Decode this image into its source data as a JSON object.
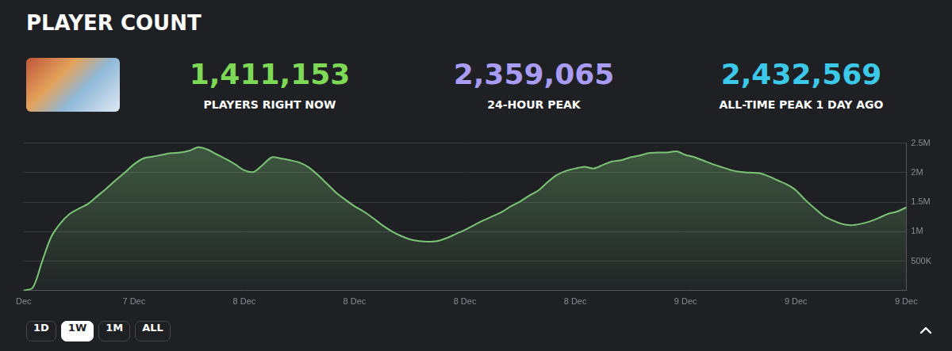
{
  "header": {
    "title": "PLAYER COUNT"
  },
  "stats": [
    {
      "value": "1,411,153",
      "label": "PLAYERS RIGHT NOW"
    },
    {
      "value": "2,359,065",
      "label": "24-HOUR PEAK"
    },
    {
      "value": "2,432,569",
      "label": "ALL-TIME PEAK 1 DAY AGO"
    }
  ],
  "range_buttons": {
    "options": [
      "1D",
      "1W",
      "1M",
      "ALL"
    ],
    "selected": "1W"
  },
  "chart_data": {
    "type": "area",
    "categories": [
      "Dec",
      null,
      null,
      null,
      null,
      null,
      null,
      null,
      null,
      null,
      null,
      null,
      "7 Dec",
      null,
      null,
      null,
      null,
      null,
      null,
      null,
      null,
      null,
      null,
      null,
      "8 Dec",
      null,
      null,
      null,
      null,
      null,
      null,
      null,
      null,
      null,
      null,
      null,
      "8 Dec",
      null,
      null,
      null,
      null,
      null,
      null,
      null,
      null,
      null,
      null,
      null,
      "8 Dec",
      null,
      null,
      null,
      null,
      null,
      null,
      null,
      null,
      null,
      null,
      null,
      "8 Dec",
      null,
      null,
      null,
      null,
      null,
      null,
      null,
      null,
      null,
      null,
      null,
      "9 Dec",
      null,
      null,
      null,
      null,
      null,
      null,
      null,
      null,
      null,
      null,
      null,
      "9 Dec",
      null,
      null,
      null,
      null,
      null,
      null,
      null,
      null,
      null,
      null,
      null,
      "9 Dec"
    ],
    "series": [
      {
        "color": "#7cc576",
        "values": [
          0,
          50000,
          490000,
          910000,
          1140000,
          1300000,
          1390000,
          1470000,
          1600000,
          1730000,
          1870000,
          2000000,
          2140000,
          2240000,
          2270000,
          2300000,
          2330000,
          2340000,
          2370000,
          2430000,
          2390000,
          2310000,
          2230000,
          2140000,
          2040000,
          2010000,
          2130000,
          2260000,
          2240000,
          2210000,
          2170000,
          2090000,
          1960000,
          1810000,
          1660000,
          1540000,
          1430000,
          1340000,
          1230000,
          1110000,
          1010000,
          930000,
          870000,
          840000,
          830000,
          840000,
          890000,
          960000,
          1030000,
          1110000,
          1190000,
          1260000,
          1330000,
          1430000,
          1510000,
          1610000,
          1700000,
          1840000,
          1960000,
          2030000,
          2070000,
          2100000,
          2070000,
          2130000,
          2190000,
          2210000,
          2260000,
          2290000,
          2330000,
          2340000,
          2340000,
          2360000,
          2300000,
          2260000,
          2200000,
          2140000,
          2090000,
          2040000,
          2010000,
          2000000,
          1990000,
          1940000,
          1870000,
          1800000,
          1700000,
          1540000,
          1400000,
          1270000,
          1190000,
          1130000,
          1110000,
          1130000,
          1170000,
          1230000,
          1300000,
          1340000,
          1410000
        ]
      }
    ],
    "ylim": [
      0,
      2500000
    ],
    "yticks": [
      {
        "value": 500000,
        "label": "500K"
      },
      {
        "value": 1000000,
        "label": "1M"
      },
      {
        "value": 1500000,
        "label": "1.5M"
      },
      {
        "value": 2000000,
        "label": "2M"
      },
      {
        "value": 2500000,
        "label": "2.5M"
      }
    ],
    "grid": true
  }
}
